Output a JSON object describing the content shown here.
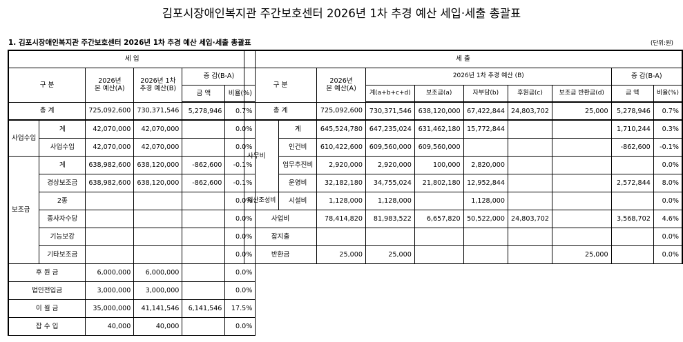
{
  "document": {
    "title": "김포시장애인복지관 주간보호센터 2026년 1차 추경 예산 세입·세출 총괄표",
    "section_title": "1. 김포시장애인복지관 주간보호센터 2026년 1차 추경 예산 세입·세출 총괄표",
    "unit": "(단위:원)"
  },
  "income": {
    "header": {
      "section": "세 입",
      "category": "구 분",
      "orig_line1": "2026년",
      "orig_line2": "본 예산(A)",
      "rev_line1": "2026년 1차",
      "rev_line2": "추경 예산(B)",
      "diff": "증 감(B-A)",
      "amount": "금 액",
      "ratio": "비율(%)"
    },
    "rows": [
      {
        "cat": "총 계",
        "sub": "",
        "orig": "725,092,600",
        "rev": "730,371,546",
        "amt": "5,278,946",
        "ratio": "0.7%"
      },
      {
        "cat": "사업수입",
        "sub": "계",
        "orig": "42,070,000",
        "rev": "42,070,000",
        "amt": "",
        "ratio": "0.0%"
      },
      {
        "cat": "",
        "sub": "사업수입",
        "orig": "42,070,000",
        "rev": "42,070,000",
        "amt": "",
        "ratio": "0.0%"
      },
      {
        "cat": "보조금",
        "sub": "계",
        "orig": "638,982,600",
        "rev": "638,120,000",
        "amt": "-862,600",
        "ratio": "-0.1%"
      },
      {
        "cat": "",
        "sub": "경상보조금",
        "orig": "638,982,600",
        "rev": "638,120,000",
        "amt": "-862,600",
        "ratio": "-0.1%"
      },
      {
        "cat": "",
        "sub": "2종",
        "orig": "",
        "rev": "",
        "amt": "",
        "ratio": "0.0%"
      },
      {
        "cat": "",
        "sub": "종사자수당",
        "orig": "",
        "rev": "",
        "amt": "",
        "ratio": "0.0%"
      },
      {
        "cat": "",
        "sub": "기능보강",
        "orig": "",
        "rev": "",
        "amt": "",
        "ratio": "0.0%"
      },
      {
        "cat": "",
        "sub": "기타보조금",
        "orig": "",
        "rev": "",
        "amt": "",
        "ratio": "0.0%"
      },
      {
        "cat": "후 원 금",
        "sub": "",
        "orig": "6,000,000",
        "rev": "6,000,000",
        "amt": "",
        "ratio": "0.0%"
      },
      {
        "cat": "법인전입금",
        "sub": "",
        "orig": "3,000,000",
        "rev": "3,000,000",
        "amt": "",
        "ratio": "0.0%"
      },
      {
        "cat": "이 월 금",
        "sub": "",
        "orig": "35,000,000",
        "rev": "41,141,546",
        "amt": "6,141,546",
        "ratio": "17.5%"
      },
      {
        "cat": "잡 수 입",
        "sub": "",
        "orig": "40,000",
        "rev": "40,000",
        "amt": "",
        "ratio": "0.0%"
      }
    ]
  },
  "expense": {
    "header": {
      "section": "세 출",
      "category": "구 분",
      "orig_line1": "2026년",
      "orig_line2": "본 예산(A)",
      "rev_group": "2026년 1차 추경 예산 (B)",
      "total": "계(a+b+c+d)",
      "subsidy": "보조금(a)",
      "own": "자부담(b)",
      "support": "후원금(c)",
      "refund": "보조금 반환금(d)",
      "diff": "증 감(B-A)",
      "amount": "금 액",
      "ratio": "비율(%)"
    },
    "rows": [
      {
        "cat": "총 계",
        "sub": "",
        "orig": "725,092,600",
        "total": "730,371,546",
        "subsidy": "638,120,000",
        "own": "67,422,844",
        "support": "24,803,702",
        "refund": "25,000",
        "amt": "5,278,946",
        "ratio": "0.7%"
      },
      {
        "cat": "사무비",
        "sub": "계",
        "orig": "645,524,780",
        "total": "647,235,024",
        "subsidy": "631,462,180",
        "own": "15,772,844",
        "support": "",
        "refund": "",
        "amt": "1,710,244",
        "ratio": "0.3%"
      },
      {
        "cat": "",
        "sub": "인건비",
        "orig": "610,422,600",
        "total": "609,560,000",
        "subsidy": "609,560,000",
        "own": "",
        "support": "",
        "refund": "",
        "amt": "-862,600",
        "ratio": "-0.1%"
      },
      {
        "cat": "",
        "sub": "업무추진비",
        "orig": "2,920,000",
        "total": "2,920,000",
        "subsidy": "100,000",
        "own": "2,820,000",
        "support": "",
        "refund": "",
        "amt": "",
        "ratio": "0.0%"
      },
      {
        "cat": "",
        "sub": "운영비",
        "orig": "32,182,180",
        "total": "34,755,024",
        "subsidy": "21,802,180",
        "own": "12,952,844",
        "support": "",
        "refund": "",
        "amt": "2,572,844",
        "ratio": "8.0%"
      },
      {
        "cat": "재산조성비",
        "sub": "시설비",
        "orig": "1,128,000",
        "total": "1,128,000",
        "subsidy": "",
        "own": "1,128,000",
        "support": "",
        "refund": "",
        "amt": "",
        "ratio": "0.0%"
      },
      {
        "cat": "사업비",
        "sub": "",
        "orig": "78,414,820",
        "total": "81,983,522",
        "subsidy": "6,657,820",
        "own": "50,522,000",
        "support": "24,803,702",
        "refund": "",
        "amt": "3,568,702",
        "ratio": "4.6%"
      },
      {
        "cat": "잡지출",
        "sub": "",
        "orig": "",
        "total": "",
        "subsidy": "",
        "own": "",
        "support": "",
        "refund": "",
        "amt": "",
        "ratio": "0.0%"
      },
      {
        "cat": "반환금",
        "sub": "",
        "orig": "25,000",
        "total": "25,000",
        "subsidy": "",
        "own": "",
        "support": "",
        "refund": "25,000",
        "amt": "",
        "ratio": "0.0%"
      }
    ]
  }
}
